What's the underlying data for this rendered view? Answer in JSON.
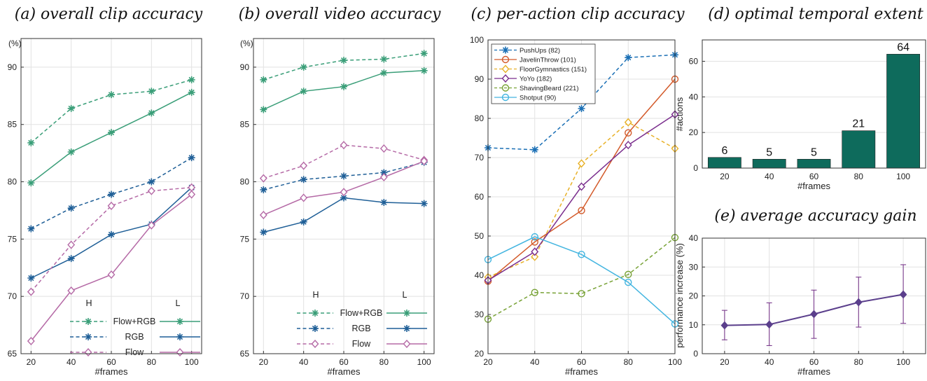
{
  "colors": {
    "flow_rgb": "#3a9e78",
    "rgb": "#1f5f97",
    "flow": "#b56aa6",
    "bar": "#0e6b5c",
    "gain": "#5b3f8c",
    "gain_err": "#7a3a8c",
    "pushups": "#1a6fb5",
    "javelin": "#d35a2a",
    "floor": "#e8b128",
    "yoyo": "#7b2f8e",
    "shaving": "#78a236",
    "shotput": "#43b5e0"
  },
  "chart_data": [
    {
      "id": "a",
      "type": "line",
      "title": "(a) overall clip accuracy",
      "xlabel": "#frames",
      "ylabel": "(%)",
      "x": [
        20,
        40,
        60,
        80,
        100
      ],
      "xticks": [
        "20",
        "40",
        "60",
        "80",
        "100"
      ],
      "yticks": [
        "65",
        "70",
        "75",
        "80",
        "85",
        "90"
      ],
      "ylim": [
        65,
        92.5
      ],
      "grid": true,
      "legend": {
        "placement": "bottom-right",
        "header_left": "H",
        "header_right": "L",
        "rows": [
          "Flow+RGB",
          "RGB",
          "Flow"
        ]
      },
      "series": [
        {
          "name": "Flow+RGB",
          "variant": "H",
          "color_key": "flow_rgb",
          "marker": "star",
          "dashed": true,
          "values": [
            83.4,
            86.4,
            87.6,
            87.9,
            88.9
          ]
        },
        {
          "name": "Flow+RGB",
          "variant": "L",
          "color_key": "flow_rgb",
          "marker": "star",
          "dashed": false,
          "values": [
            79.9,
            82.6,
            84.3,
            86.0,
            87.8
          ]
        },
        {
          "name": "RGB",
          "variant": "H",
          "color_key": "rgb",
          "marker": "star",
          "dashed": true,
          "values": [
            75.9,
            77.7,
            78.9,
            80.0,
            82.1
          ]
        },
        {
          "name": "RGB",
          "variant": "L",
          "color_key": "rgb",
          "marker": "star",
          "dashed": false,
          "values": [
            71.6,
            73.3,
            75.4,
            76.3,
            79.5
          ]
        },
        {
          "name": "Flow",
          "variant": "H",
          "color_key": "flow",
          "marker": "diamond",
          "dashed": true,
          "values": [
            70.4,
            74.5,
            77.9,
            79.2,
            79.5
          ]
        },
        {
          "name": "Flow",
          "variant": "L",
          "color_key": "flow",
          "marker": "diamond",
          "dashed": false,
          "values": [
            66.1,
            70.5,
            71.9,
            76.2,
            78.9
          ]
        }
      ]
    },
    {
      "id": "b",
      "type": "line",
      "title": "(b) overall video accuracy",
      "xlabel": "#frames",
      "ylabel": "(%)",
      "x": [
        20,
        40,
        60,
        80,
        100
      ],
      "xticks": [
        "20",
        "40",
        "60",
        "80",
        "100"
      ],
      "yticks": [
        "65",
        "70",
        "75",
        "80",
        "85",
        "90"
      ],
      "ylim": [
        65,
        92.5
      ],
      "grid": true,
      "legend": {
        "placement": "bottom-right",
        "header_left": "H",
        "header_right": "L",
        "rows": [
          "Flow+RGB",
          "RGB",
          "Flow"
        ]
      },
      "series": [
        {
          "name": "Flow+RGB",
          "variant": "H",
          "color_key": "flow_rgb",
          "marker": "star",
          "dashed": true,
          "values": [
            88.9,
            90.0,
            90.6,
            90.7,
            91.2
          ]
        },
        {
          "name": "Flow+RGB",
          "variant": "L",
          "color_key": "flow_rgb",
          "marker": "star",
          "dashed": false,
          "values": [
            86.3,
            87.9,
            88.3,
            89.5,
            89.7
          ]
        },
        {
          "name": "RGB",
          "variant": "H",
          "color_key": "rgb",
          "marker": "star",
          "dashed": true,
          "values": [
            79.3,
            80.2,
            80.5,
            80.8,
            81.7
          ]
        },
        {
          "name": "RGB",
          "variant": "L",
          "color_key": "rgb",
          "marker": "star",
          "dashed": false,
          "values": [
            75.6,
            76.5,
            78.6,
            78.2,
            78.1
          ]
        },
        {
          "name": "Flow",
          "variant": "H",
          "color_key": "flow",
          "marker": "diamond",
          "dashed": true,
          "values": [
            80.3,
            81.4,
            83.2,
            82.9,
            81.9
          ]
        },
        {
          "name": "Flow",
          "variant": "L",
          "color_key": "flow",
          "marker": "diamond",
          "dashed": false,
          "values": [
            77.1,
            78.6,
            79.1,
            80.4,
            81.8
          ]
        }
      ]
    },
    {
      "id": "c",
      "type": "line",
      "title": "(c) per-action clip accuracy",
      "xlabel": "#frames",
      "ylabel": "",
      "x": [
        20,
        40,
        60,
        80,
        100
      ],
      "xticks": [
        "20",
        "40",
        "60",
        "80",
        "100"
      ],
      "yticks": [
        "20",
        "30",
        "40",
        "50",
        "60",
        "70",
        "80",
        "90",
        "100"
      ],
      "ylim": [
        20,
        100
      ],
      "grid": true,
      "legend": {
        "placement": "top-left"
      },
      "series": [
        {
          "name": "PushUps (82)",
          "color_key": "pushups",
          "marker": "star",
          "dashed": true,
          "values": [
            72.5,
            72.0,
            82.5,
            95.5,
            96.2
          ]
        },
        {
          "name": "JavelinThrow (101)",
          "color_key": "javelin",
          "marker": "circle",
          "dashed": false,
          "values": [
            38.5,
            48.5,
            56.5,
            76.3,
            90.0
          ]
        },
        {
          "name": "FloorGymnastics (151)",
          "color_key": "floor",
          "marker": "diamond",
          "dashed": true,
          "values": [
            39.5,
            44.7,
            68.5,
            79.0,
            72.3
          ]
        },
        {
          "name": "YoYo (182)",
          "color_key": "yoyo",
          "marker": "diamond",
          "dashed": false,
          "values": [
            38.7,
            46.0,
            62.6,
            73.2,
            81.0
          ]
        },
        {
          "name": "ShavingBeard (221)",
          "color_key": "shaving",
          "marker": "circle",
          "dashed": true,
          "values": [
            28.8,
            35.6,
            35.3,
            40.2,
            49.6
          ]
        },
        {
          "name": "Shotput (90)",
          "color_key": "shotput",
          "marker": "circle",
          "dashed": false,
          "values": [
            44.0,
            49.8,
            45.3,
            38.2,
            27.6
          ]
        }
      ]
    },
    {
      "id": "d",
      "type": "bar",
      "title": "(d) optimal temporal extent",
      "xlabel": "#frames",
      "ylabel": "#actions",
      "categories": [
        "20",
        "40",
        "60",
        "80",
        "100"
      ],
      "values": [
        6,
        5,
        5,
        21,
        64
      ],
      "data_labels": [
        "6",
        "5",
        "5",
        "21",
        "64"
      ],
      "yticks": [
        "0",
        "20",
        "40",
        "60"
      ],
      "ylim": [
        0,
        72
      ],
      "grid": true
    },
    {
      "id": "e",
      "type": "line",
      "title": "(e) average accuracy gain",
      "xlabel": "#frames",
      "ylabel": "performance increase (%)",
      "x": [
        20,
        40,
        60,
        80,
        100
      ],
      "xticks": [
        "20",
        "40",
        "60",
        "80",
        "100"
      ],
      "yticks": [
        "0",
        "10",
        "20",
        "30",
        "40"
      ],
      "ylim": [
        0,
        40
      ],
      "grid": true,
      "series": [
        {
          "color_key": "gain",
          "marker": "diamond",
          "dashed": false,
          "values": [
            9.8,
            10.1,
            13.7,
            17.8,
            20.5
          ],
          "err_low": [
            4.8,
            2.8,
            5.3,
            9.2,
            10.5
          ],
          "err_high": [
            15.0,
            17.6,
            22.0,
            26.5,
            30.8
          ]
        }
      ]
    }
  ]
}
